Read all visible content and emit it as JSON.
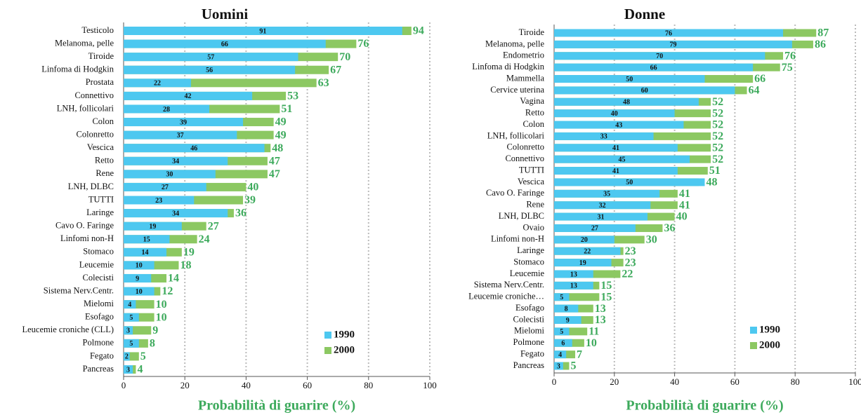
{
  "chart_data": [
    {
      "type": "bar",
      "orientation": "horizontal",
      "title": "Uomini",
      "xlabel": "Probabilità di guarire (%)",
      "categories": [
        "Testicolo",
        "Melanoma, pelle",
        "Tiroide",
        "Linfoma di Hodgkin",
        "Prostata",
        "Connettivo",
        "LNH, follicolari",
        "Colon",
        "Colonretto",
        "Vescica",
        "Retto",
        "Rene",
        "LNH, DLBC",
        "TUTTI",
        "Laringe",
        "Cavo O. Faringe",
        "Linfomi non-H",
        "Stomaco",
        "Leucemie",
        "Colecisti",
        "Sistema Nerv.Centr.",
        "Mielomi",
        "Esofago",
        "Leucemie croniche (CLL)",
        "Polmone",
        "Fegato",
        "Pancreas"
      ],
      "series": [
        {
          "name": "1990",
          "color": "#4dc8f0",
          "values": [
            91,
            66,
            57,
            56,
            22,
            42,
            28,
            39,
            37,
            46,
            34,
            30,
            27,
            23,
            34,
            19,
            15,
            14,
            10,
            9,
            10,
            4,
            5,
            3,
            5,
            2,
            3
          ]
        },
        {
          "name": "2000",
          "color": "#8cc862",
          "values": [
            94,
            76,
            70,
            67,
            63,
            53,
            51,
            49,
            49,
            48,
            47,
            47,
            40,
            39,
            36,
            27,
            24,
            19,
            18,
            14,
            12,
            10,
            10,
            9,
            8,
            5,
            4
          ]
        }
      ],
      "xlim": [
        0,
        100
      ],
      "xticks": [
        0,
        20,
        40,
        60,
        80,
        100
      ],
      "grid": true,
      "legend": "lower right"
    },
    {
      "type": "bar",
      "orientation": "horizontal",
      "title": "Donne",
      "xlabel": "Probabilità di guarire (%)",
      "categories": [
        "Tiroide",
        "Melanoma, pelle",
        "Endometrio",
        "Linfoma di Hodgkin",
        "Mammella",
        "Cervice uterina",
        "Vagina",
        "Retto",
        "Colon",
        "LNH, follicolari",
        "Colonretto",
        "Connettivo",
        "TUTTI",
        "Vescica",
        "Cavo O. Faringe",
        "Rene",
        "LNH, DLBC",
        "Ovaio",
        "Linfomi non-H",
        "Laringe",
        "Stomaco",
        "Leucemie",
        "Sistema Nerv.Centr.",
        "Leucemie croniche…",
        "Esofago",
        "Colecisti",
        "Mielomi",
        "Polmone",
        "Fegato",
        "Pancreas"
      ],
      "series": [
        {
          "name": "1990",
          "color": "#4dc8f0",
          "values": [
            76,
            79,
            70,
            66,
            50,
            60,
            48,
            40,
            43,
            33,
            41,
            45,
            41,
            50,
            35,
            32,
            31,
            27,
            20,
            22,
            19,
            13,
            13,
            5,
            8,
            9,
            5,
            6,
            4,
            3
          ]
        },
        {
          "name": "2000",
          "color": "#8cc862",
          "values": [
            87,
            86,
            76,
            75,
            66,
            64,
            52,
            52,
            52,
            52,
            52,
            52,
            51,
            48,
            41,
            41,
            40,
            36,
            30,
            23,
            23,
            22,
            15,
            15,
            13,
            13,
            11,
            10,
            7,
            5
          ]
        }
      ],
      "xlim": [
        0,
        100
      ],
      "xticks": [
        0,
        20,
        40,
        60,
        80,
        100
      ],
      "grid": true,
      "legend": "lower right"
    }
  ]
}
